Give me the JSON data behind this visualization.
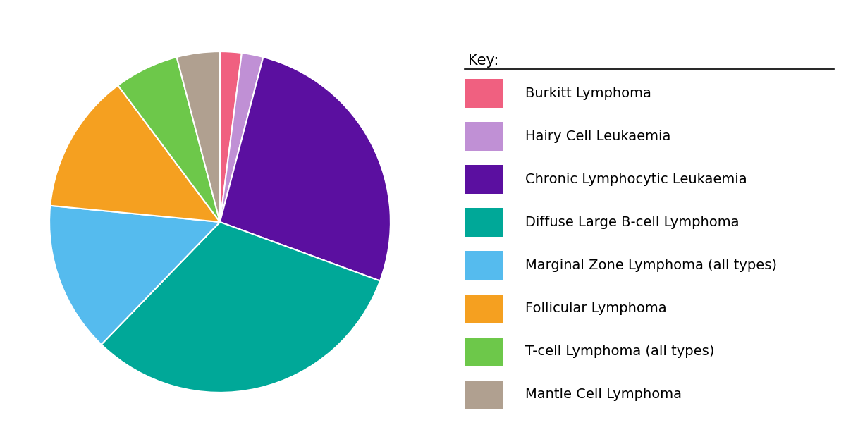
{
  "labels": [
    "Burkitt Lymphoma",
    "Hairy Cell Leukaemia",
    "Chronic Lymphocytic Leukaemia",
    "Diffuse Large B-cell Lymphoma",
    "Marginal Zone Lymphoma (all types)",
    "Follicular Lymphoma",
    "T-cell Lymphoma (all types)",
    "Mantle Cell Lymphoma"
  ],
  "values": [
    2.0,
    2.0,
    26,
    31,
    14,
    13,
    6,
    4
  ],
  "colors": [
    "#F06080",
    "#C090D5",
    "#5B0FA0",
    "#00A898",
    "#55BBEE",
    "#F5A020",
    "#6DC84A",
    "#B0A090"
  ],
  "key_title": "Key:",
  "background_color": "#ffffff",
  "startangle": 90,
  "legend_fontsize": 14,
  "key_title_fontsize": 15
}
